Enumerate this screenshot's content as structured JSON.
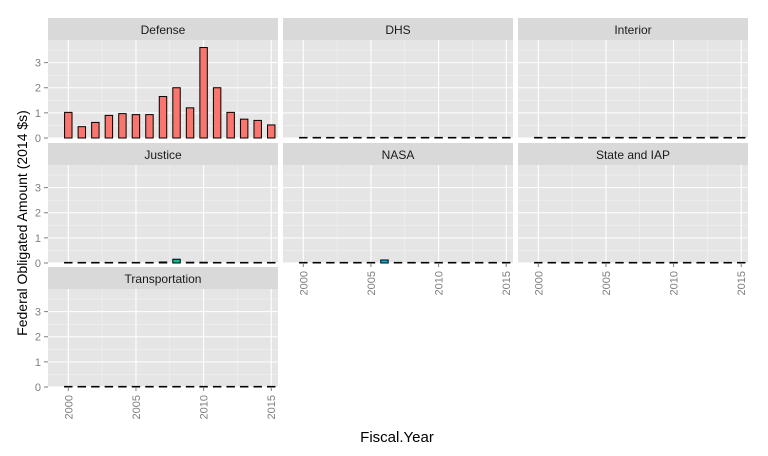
{
  "chart_data": {
    "type": "bar",
    "facet_layout": "wrap-3-columns",
    "xlabel": "Fiscal.Year",
    "ylabel": "Federal Obligated Amount (2014 $s)",
    "xlim": [
      1998.5,
      2015.5
    ],
    "ylim": [
      0,
      3.9
    ],
    "x_ticks": [
      2000,
      2005,
      2010,
      2015
    ],
    "y_ticks": [
      0,
      1,
      2,
      3
    ],
    "grid": true,
    "legend": "none",
    "years": [
      1999,
      2000,
      2001,
      2002,
      2003,
      2004,
      2005,
      2006,
      2007,
      2008,
      2009,
      2010,
      2011,
      2012,
      2013,
      2014,
      2015
    ],
    "panels": [
      {
        "name": "Defense",
        "color": "#f8766d",
        "values": [
          null,
          1.02,
          0.45,
          0.62,
          0.9,
          0.97,
          0.93,
          0.93,
          1.65,
          2.0,
          1.2,
          3.6,
          2.0,
          1.02,
          0.75,
          0.7,
          0.52
        ]
      },
      {
        "name": "DHS",
        "color": "#c49a00",
        "values": [
          null,
          0,
          0,
          0,
          0,
          0,
          0,
          0,
          0,
          0,
          0.02,
          0,
          0.02,
          0,
          0,
          0,
          0
        ]
      },
      {
        "name": "Interior",
        "color": "#53b400",
        "values": [
          null,
          0,
          0,
          0,
          0,
          0,
          0,
          0,
          0,
          0,
          0,
          0,
          0,
          0,
          0.03,
          0,
          0
        ]
      },
      {
        "name": "Justice",
        "color": "#00c094",
        "values": [
          null,
          0.01,
          0,
          0.01,
          0.02,
          0.02,
          0.02,
          0.02,
          0.04,
          0.15,
          0.03,
          0.03,
          0.02,
          0.02,
          0,
          0.01,
          0
        ]
      },
      {
        "name": "NASA",
        "color": "#00b6eb",
        "values": [
          null,
          0.01,
          0.01,
          0.01,
          0,
          0,
          0.02,
          0.12,
          0.02,
          0.02,
          0,
          0,
          0,
          0,
          0,
          0,
          0
        ]
      },
      {
        "name": "State and IAP",
        "color": "#a58aff",
        "values": [
          null,
          0,
          0,
          0,
          0,
          0,
          0,
          0,
          0,
          0,
          0,
          0,
          0,
          0.02,
          0,
          0.02,
          0
        ]
      },
      {
        "name": "Transportation",
        "color": "#fb61d7",
        "values": [
          null,
          0,
          0,
          0,
          0,
          0,
          0,
          0,
          0,
          0,
          0,
          0,
          0,
          0,
          0,
          0,
          0
        ]
      }
    ]
  }
}
